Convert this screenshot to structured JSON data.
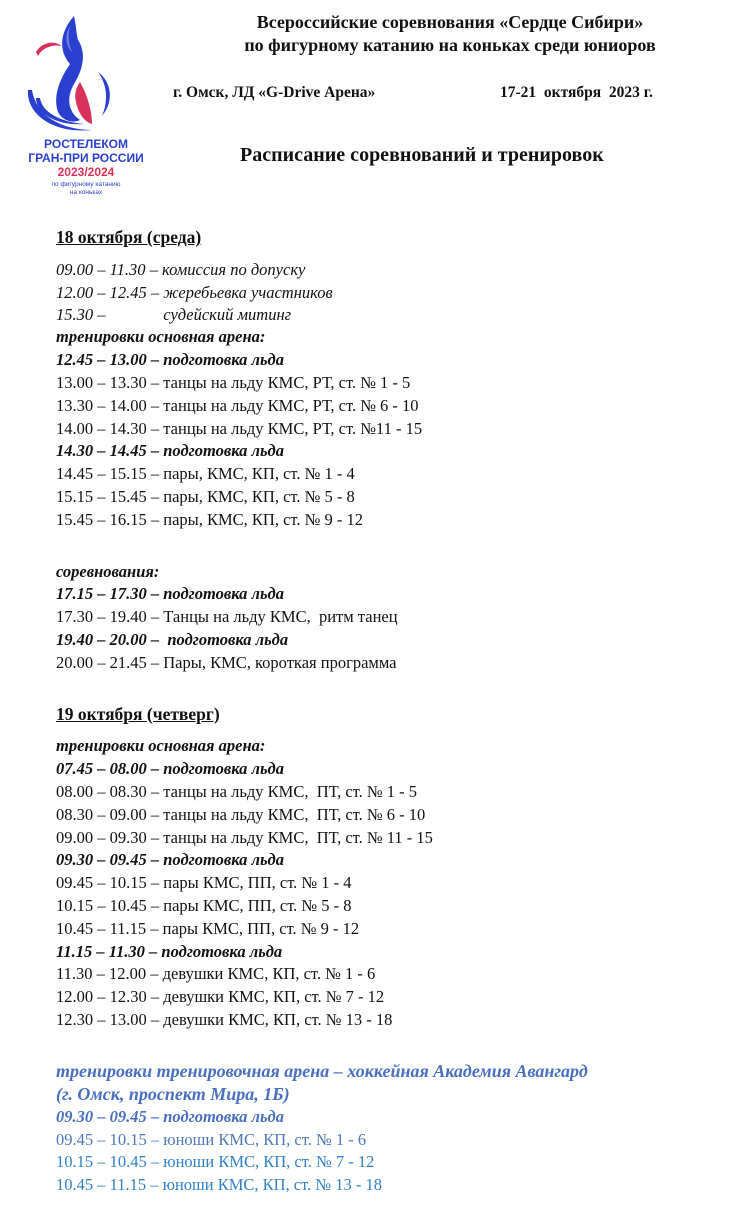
{
  "header": {
    "title_line1": "Всероссийские соревнования «Сердце Сибири»",
    "title_line2": "по фигурному катанию на коньках среди юниоров",
    "venue": "г. Омск, ЛД «G-Drive Арена»",
    "dates": "17-21  октября  2023 г.",
    "schedule_title": "Расписание соревнований и тренировок"
  },
  "logo": {
    "line1": "РОСТЕЛЕКОМ",
    "line2": "ГРАН-ПРИ РОССИИ",
    "season": "2023/2024",
    "sub1": "по фигурному катанию",
    "sub2": "на коньках",
    "colors": {
      "blue": "#2a3fcf",
      "red": "#d8325a"
    }
  },
  "day1": {
    "heading": "18 октября (среда)",
    "intro": [
      "09.00 – 11.30 – комиссия по допуску",
      "12.00 – 12.45 – жеребьевка участников",
      "15.30 –              судейский митинг"
    ],
    "training_heading": "тренировки основная арена:",
    "training": [
      {
        "text": "12.45 – 13.00 – подготовка льда",
        "bold": true
      },
      {
        "text": "13.00 – 13.30 – танцы на льду КМС, РТ, ст. № 1 - 5"
      },
      {
        "text": "13.30 – 14.00 – танцы на льду КМС, РТ, ст. № 6 - 10"
      },
      {
        "text": "14.00 – 14.30 – танцы на льду КМС, РТ, ст. №11 - 15"
      },
      {
        "text": "14.30 – 14.45 – подготовка льда",
        "bold": true
      },
      {
        "text": "14.45 – 15.15 – пары, КМС, КП, ст. № 1 - 4"
      },
      {
        "text": "15.15 – 15.45 – пары, КМС, КП, ст. № 5 - 8"
      },
      {
        "text": "15.45 – 16.15 – пары, КМС, КП, ст. № 9 - 12"
      }
    ],
    "competition_heading": "соревнования:",
    "competition": [
      {
        "text": "17.15 – 17.30 – подготовка льда",
        "bold": true
      },
      {
        "text": "17.30 – 19.40 – Танцы на льду КМС,  ритм танец"
      },
      {
        "text": "19.40 – 20.00 –  подготовка льда",
        "bold": true
      },
      {
        "text": "20.00 – 21.45 – Пары, КМС, короткая программа"
      }
    ]
  },
  "day2": {
    "heading": "19 октября (четверг)",
    "training_heading": "тренировки основная арена:",
    "training": [
      {
        "text": "07.45 – 08.00 – подготовка льда",
        "bold": true
      },
      {
        "text": "08.00 – 08.30 – танцы на льду КМС,  ПТ, ст. № 1 - 5"
      },
      {
        "text": "08.30 – 09.00 – танцы на льду КМС,  ПТ, ст. № 6 - 10"
      },
      {
        "text": "09.00 – 09.30 – танцы на льду КМС,  ПТ, ст. № 11 - 15"
      },
      {
        "text": "09.30 – 09.45 – подготовка льда",
        "bold": true
      },
      {
        "text": "09.45 – 10.15 – пары КМС, ПП, ст. № 1 - 4"
      },
      {
        "text": "10.15 – 10.45 – пары КМС, ПП, ст. № 5 - 8"
      },
      {
        "text": "10.45 – 11.15 – пары КМС, ПП, ст. № 9 - 12"
      },
      {
        "text": "11.15 – 11.30 – подготовка льда",
        "bold": true
      },
      {
        "text": "11.30 – 12.00 – девушки КМС, КП, ст. № 1 - 6"
      },
      {
        "text": "12.00 – 12.30 – девушки КМС, КП, ст. № 7 - 12"
      },
      {
        "text": "12.30 – 13.00 – девушки КМС, КП, ст. № 13 - 18"
      }
    ],
    "secondary_heading1": "тренировки тренировочная арена – хоккейная Академия Авангард",
    "secondary_heading2": "(г. Омск, проспект Мира, 1Б)",
    "secondary": [
      "09.30 – 09.45 – подготовка льда",
      "09.45 – 10.15 – юноши КМС, КП, ст. № 1 - 6",
      "10.15 – 10.45 – юноши КМС, КП, ст. № 7 - 12",
      "10.45 – 11.15 – юноши КМС, КП, ст. № 13 - 18"
    ],
    "secondary_color": "#2f80c8",
    "secondary_heading_color": "#4a6fc0"
  }
}
